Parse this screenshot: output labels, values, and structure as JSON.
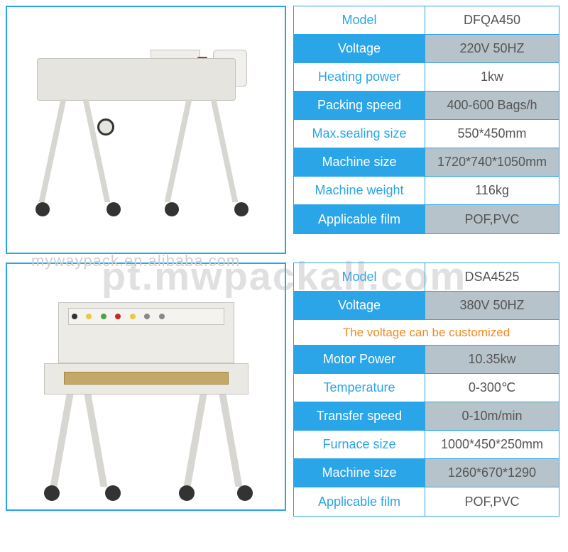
{
  "colors": {
    "accent": "#2aa5e8",
    "even_value_bg": "#b7c3ca",
    "note_text": "#f08a24",
    "watermark_light": "#cfcfcf",
    "watermark_bold": "rgba(160,160,160,0.32)"
  },
  "watermarks": {
    "small": "mywaypack.en.alibaba.com",
    "large": "pt.mwpackall.com"
  },
  "product1": {
    "image_alt": "L-bar sealer machine",
    "rows": [
      {
        "label": "Model",
        "value": "DFQA450",
        "style": "odd"
      },
      {
        "label": "Voltage",
        "value": "220V 50HZ",
        "style": "even"
      },
      {
        "label": "Heating power",
        "value": "1kw",
        "style": "odd"
      },
      {
        "label": "Packing speed",
        "value": "400-600 Bags/h",
        "style": "even"
      },
      {
        "label": "Max.sealing size",
        "value": "550*450mm",
        "style": "odd"
      },
      {
        "label": "Machine size",
        "value": "1720*740*1050mm",
        "style": "even"
      },
      {
        "label": "Machine weight",
        "value": "116kg",
        "style": "odd"
      },
      {
        "label": "Applicable film",
        "value": "POF,PVC",
        "style": "even"
      }
    ]
  },
  "product2": {
    "image_alt": "Shrink tunnel machine",
    "note": "The voltage can be customized",
    "rows": [
      {
        "label": "Model",
        "value": "DSA4525",
        "style": "odd"
      },
      {
        "label": "Voltage",
        "value": "380V 50HZ",
        "style": "even"
      },
      {
        "label": "Motor Power",
        "value": "10.35kw",
        "style": "even"
      },
      {
        "label": "Temperature",
        "value": "0-300℃",
        "style": "odd"
      },
      {
        "label": "Transfer speed",
        "value": "0-10m/min",
        "style": "even"
      },
      {
        "label": "Furnace size",
        "value": "1000*450*250mm",
        "style": "odd"
      },
      {
        "label": "Machine size",
        "value": "1260*670*1290",
        "style": "even"
      },
      {
        "label": "Applicable film",
        "value": "POF,PVC",
        "style": "odd"
      }
    ]
  }
}
